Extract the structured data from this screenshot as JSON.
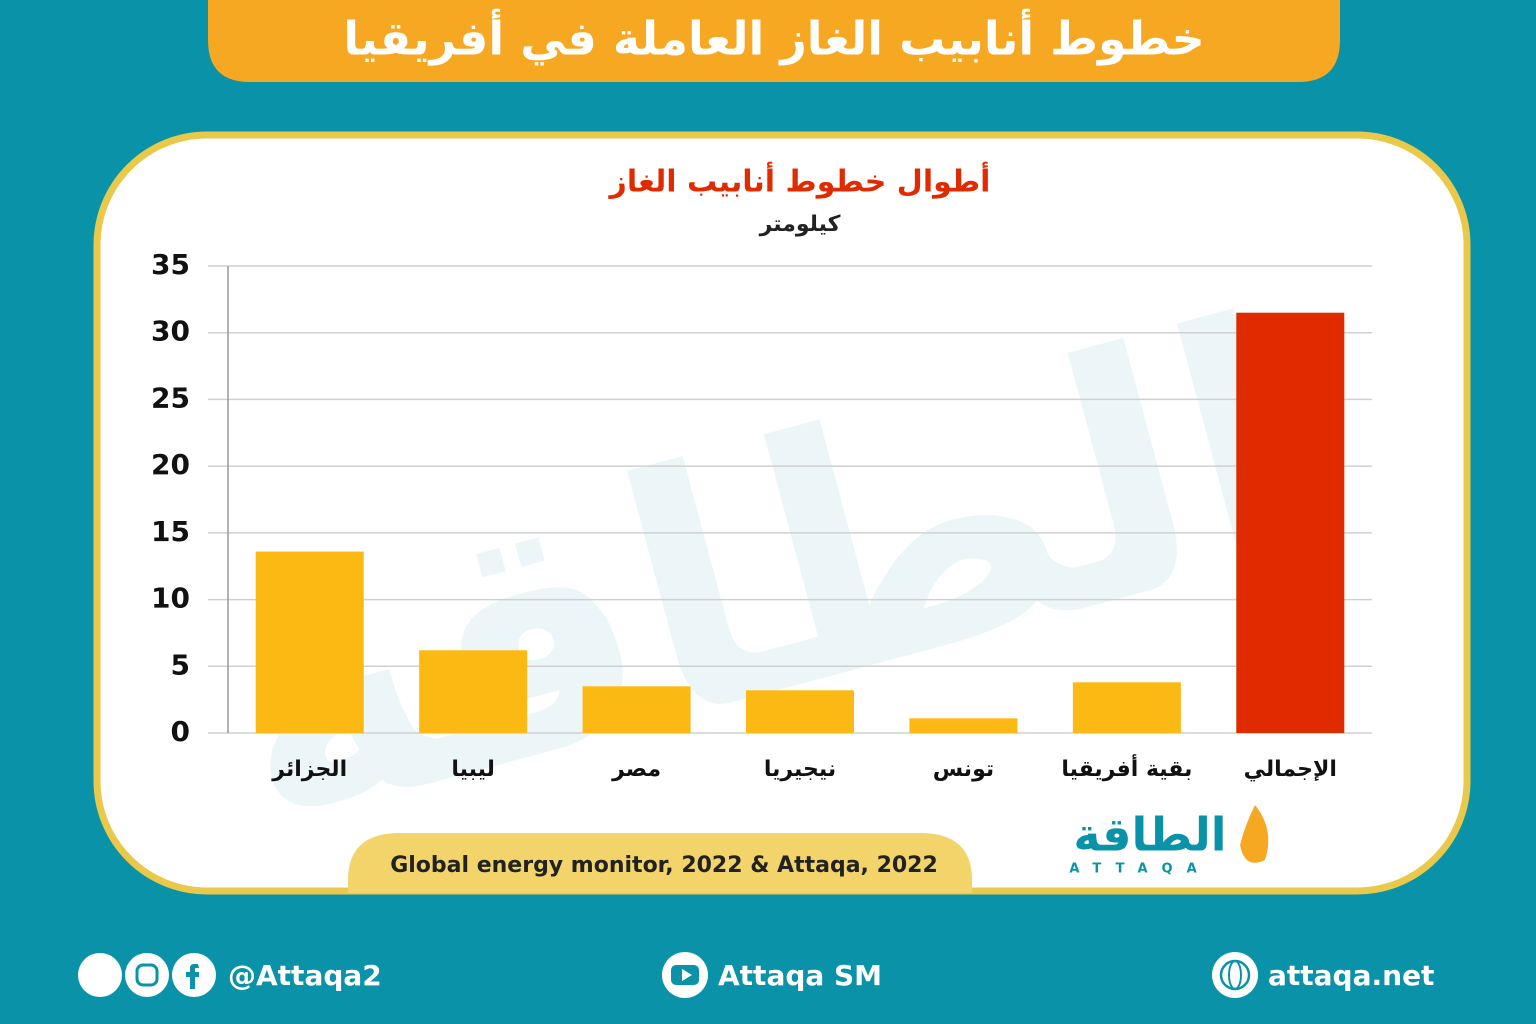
{
  "header": {
    "title": "خطوط أنابيب الغاز العاملة في أفريقيا"
  },
  "chart_data": {
    "type": "bar",
    "title": "أطوال خطوط أنابيب الغاز",
    "subtitle": "كيلومتر",
    "categories": [
      "الجزائر",
      "ليبيا",
      "مصر",
      "نيجيريا",
      "تونس",
      "بقية أفريقيا",
      "الإجمالي"
    ],
    "values": [
      13.6,
      6.2,
      3.5,
      3.2,
      1.1,
      3.8,
      31.5
    ],
    "colors": [
      "#fdb913",
      "#fdb913",
      "#fdb913",
      "#fdb913",
      "#fdb913",
      "#fdb913",
      "#e02b00"
    ],
    "ylim": [
      0,
      35
    ],
    "yticks": [
      0,
      5,
      10,
      15,
      20,
      25,
      30,
      35
    ],
    "grid": true
  },
  "source": "Global energy monitor, 2022 & Attaqa, 2022",
  "logo": {
    "name": "الطاقة",
    "latin": "ATTAQA"
  },
  "footer": {
    "handle": "@Attaqa2",
    "channel": "Attaqa SM",
    "site": "attaqa.net"
  }
}
